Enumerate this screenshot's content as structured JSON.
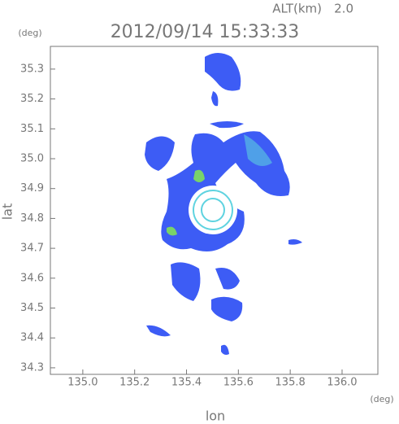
{
  "chart_data": {
    "type": "map",
    "title": "2012/09/14 15:33:33",
    "altitude_label": "ALT(km)",
    "altitude": "2.0",
    "x_label": "lon",
    "y_label": "lat",
    "x_unit": "(deg)",
    "y_unit": "(deg)",
    "xlim": [
      134.875,
      136.138
    ],
    "ylim": [
      34.278,
      35.376
    ],
    "xticks": [
      {
        "value": 135,
        "label": "135.0"
      },
      135.2,
      135.4,
      135.6,
      135.8,
      {
        "value": 136,
        "label": "136.0"
      }
    ],
    "yticks": [
      34.3,
      34.4,
      34.5,
      34.6,
      34.7,
      34.8,
      34.9,
      {
        "value": 35,
        "label": "35.0"
      },
      35.1,
      35.2,
      35.3
    ]
  }
}
